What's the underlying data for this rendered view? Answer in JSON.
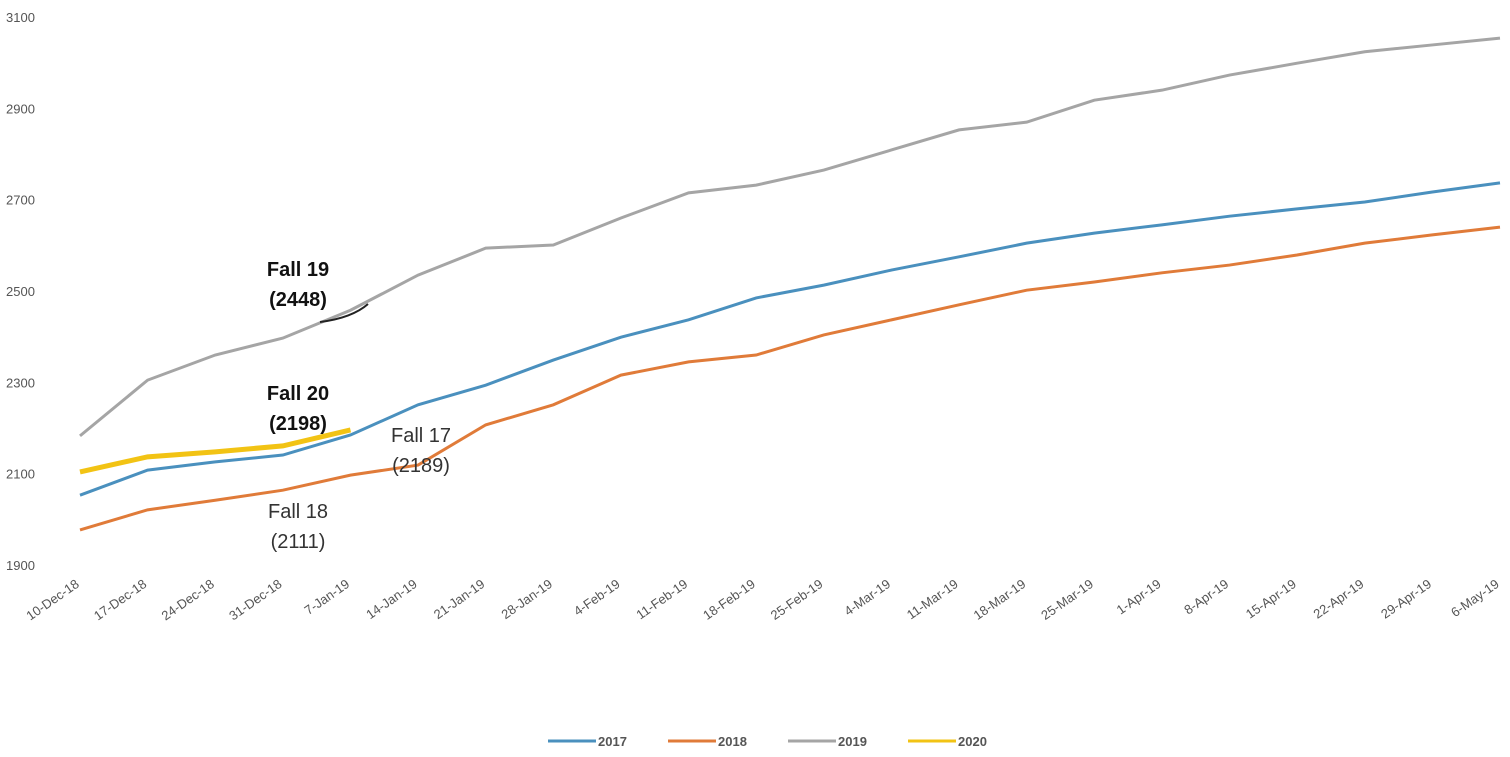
{
  "chart_data": {
    "type": "line",
    "categories": [
      "10-Dec-18",
      "17-Dec-18",
      "24-Dec-18",
      "31-Dec-18",
      "7-Jan-19",
      "14-Jan-19",
      "21-Jan-19",
      "28-Jan-19",
      "4-Feb-19",
      "11-Feb-19",
      "18-Feb-19",
      "25-Feb-19",
      "4-Mar-19",
      "11-Mar-19",
      "18-Mar-19",
      "25-Mar-19",
      "1-Apr-19",
      "8-Apr-19",
      "15-Apr-19",
      "22-Apr-19",
      "29-Apr-19",
      "6-May-19"
    ],
    "series": [
      {
        "name": "2017",
        "color": "#4a90be",
        "values": [
          2055,
          2110,
          2128,
          2143,
          2187,
          2253,
          2296,
          2351,
          2401,
          2439,
          2487,
          2515,
          2548,
          2577,
          2607,
          2629,
          2647,
          2666,
          2682,
          2697,
          2719,
          2739
        ]
      },
      {
        "name": "2018",
        "color": "#e07b39",
        "values": [
          1979,
          2023,
          2044,
          2066,
          2099,
          2121,
          2209,
          2253,
          2318,
          2347,
          2362,
          2406,
          2439,
          2472,
          2504,
          2522,
          2542,
          2559,
          2581,
          2607,
          2625,
          2642
        ]
      },
      {
        "name": "2019",
        "color": "#a5a5a5",
        "values": [
          2185,
          2307,
          2362,
          2399,
          2460,
          2537,
          2596,
          2603,
          2662,
          2717,
          2734,
          2767,
          2811,
          2855,
          2872,
          2920,
          2942,
          2975,
          3001,
          3026,
          3041,
          3056
        ]
      },
      {
        "name": "2020",
        "color": "#f2c314",
        "values": [
          2106,
          2139,
          2150,
          2163,
          2198,
          null,
          null,
          null,
          null,
          null,
          null,
          null,
          null,
          null,
          null,
          null,
          null,
          null,
          null,
          null,
          null,
          null
        ]
      }
    ],
    "ylim": [
      1900,
      3100
    ],
    "yticks": [
      1900,
      2100,
      2300,
      2500,
      2700,
      2900,
      3100
    ],
    "annotations": [
      "Fall 19",
      "(2448)",
      "Fall 20",
      "(2198)",
      "Fall 17",
      "(2189)",
      "Fall 18",
      "(2111)"
    ],
    "legend": "bottom"
  }
}
